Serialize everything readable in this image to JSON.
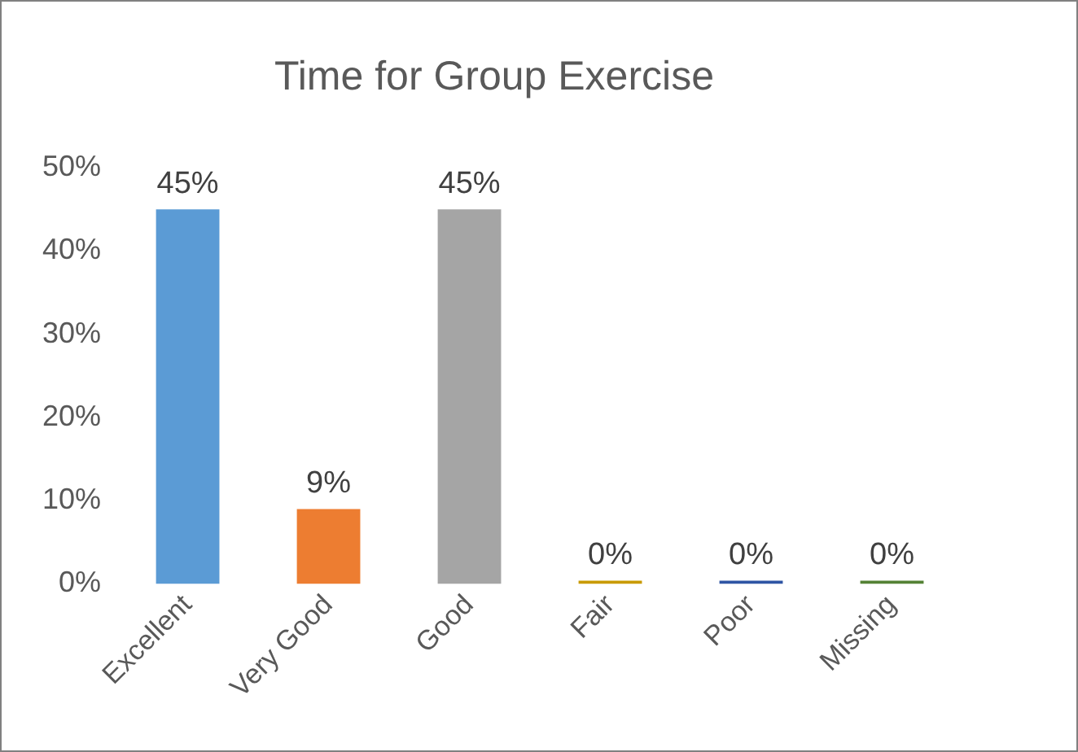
{
  "chart_data": {
    "type": "bar",
    "title": "Time for Group Exercise",
    "categories": [
      "Excellent",
      "Very Good",
      "Good",
      "Fair",
      "Poor",
      "Missing"
    ],
    "values": [
      45,
      9,
      45,
      0,
      0,
      0
    ],
    "colors": [
      "#5b9bd5",
      "#ed7d31",
      "#a5a5a5",
      "#c99a00",
      "#2f55a4",
      "#548235"
    ],
    "value_labels": [
      "45%",
      "9%",
      "45%",
      "0%",
      "0%",
      "0%"
    ],
    "ylim": [
      0,
      50
    ],
    "yticks": [
      {
        "value": 0,
        "label": "0%"
      },
      {
        "value": 10,
        "label": "10%"
      },
      {
        "value": 20,
        "label": "20%"
      },
      {
        "value": 30,
        "label": "30%"
      },
      {
        "value": 40,
        "label": "40%"
      },
      {
        "value": 50,
        "label": "50%"
      }
    ],
    "grid": false,
    "legend": false
  }
}
